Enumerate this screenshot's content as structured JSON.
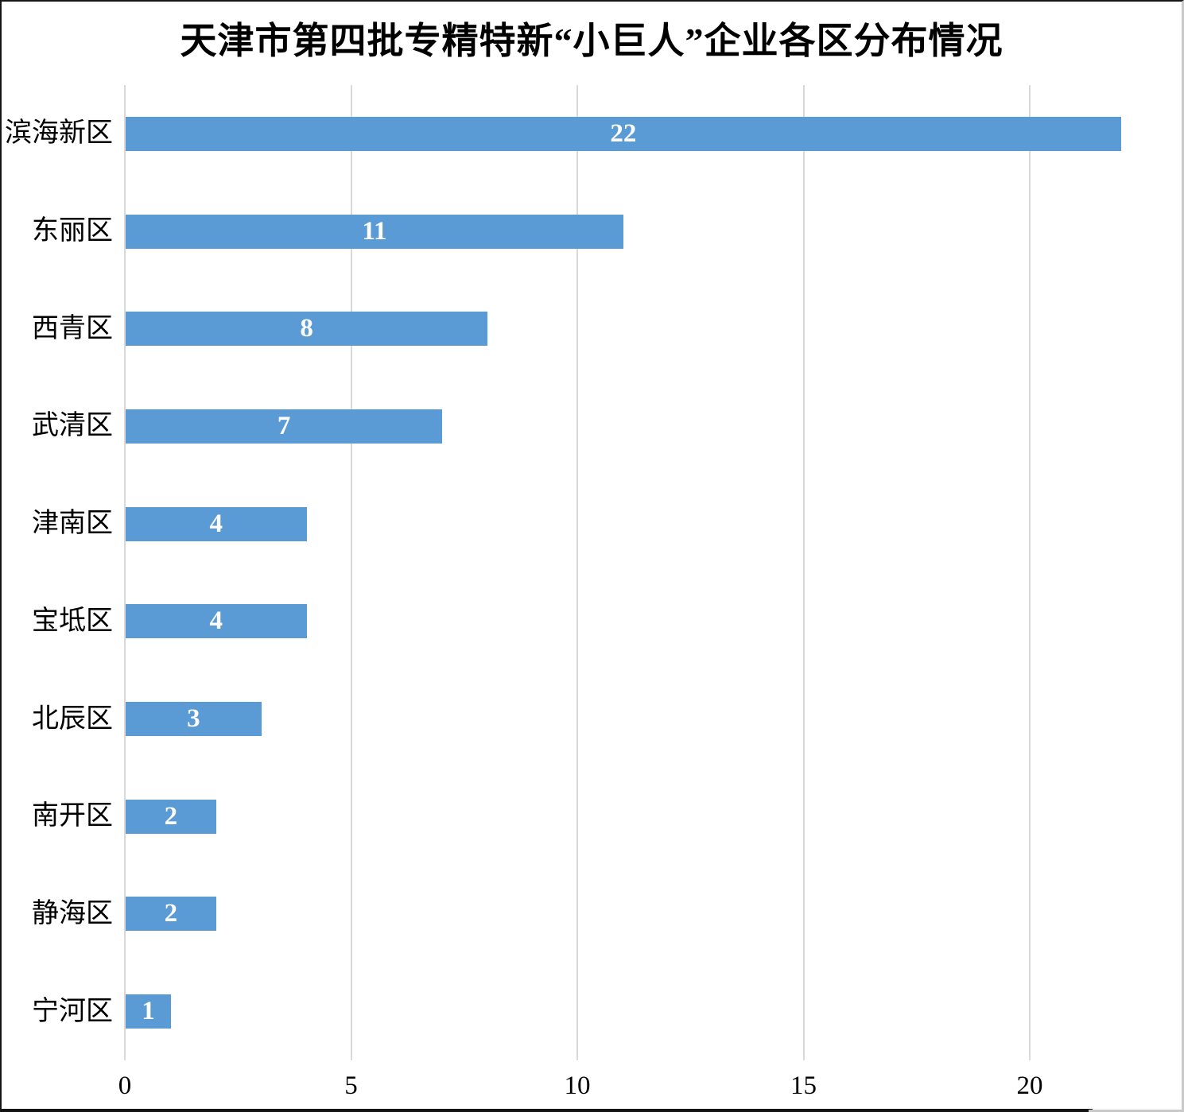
{
  "title": "天津市第四批专精特新“小巨人”企业各区分布情况",
  "colors": {
    "bar": "#5B9BD5",
    "gridline": "#D9D9D9",
    "title_text": "#000000",
    "category_text": "#000000",
    "tick_text": "#000000",
    "value_label_text": "#FFFFFF",
    "background": "#FFFFFF"
  },
  "chart_data": {
    "type": "bar",
    "orientation": "horizontal",
    "title": "天津市第四批专精特新“小巨人”企业各区分布情况",
    "categories": [
      "滨海新区",
      "东丽区",
      "西青区",
      "武清区",
      "津南区",
      "宝坻区",
      "北辰区",
      "南开区",
      "静海区",
      "宁河区"
    ],
    "values": [
      22,
      11,
      8,
      7,
      4,
      4,
      3,
      2,
      2,
      1
    ],
    "xlabel": "",
    "ylabel": "",
    "xlim": [
      0,
      22
    ],
    "x_ticks": [
      0,
      5,
      10,
      15,
      20
    ],
    "grid": true,
    "legend": "none",
    "data_labels_position": "center"
  }
}
